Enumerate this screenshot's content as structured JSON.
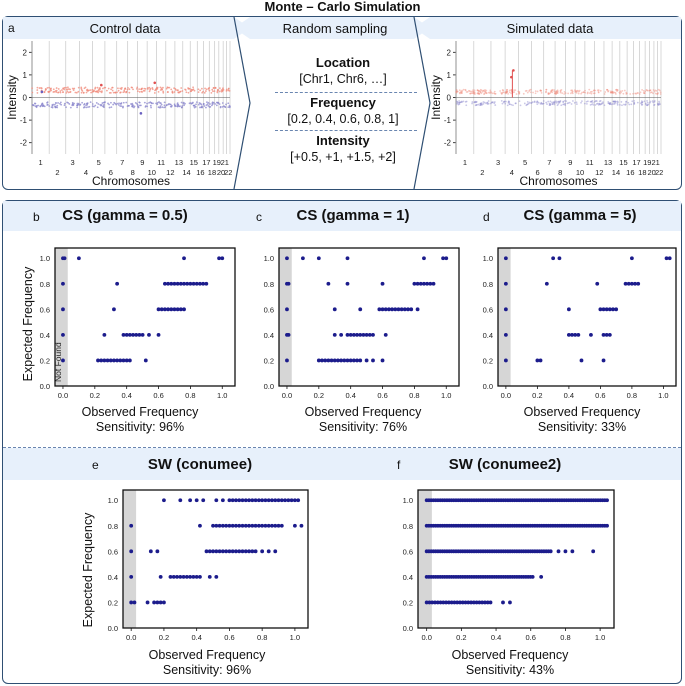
{
  "figure_title": "Monte – Carlo Simulation",
  "top": {
    "panel_a_label": "a",
    "control_title": "Control data",
    "random_title": "Random sampling",
    "simulated_title": "Simulated data",
    "location_head": "Location",
    "location_value": "[Chr1, Chr6, …]",
    "frequency_head": "Frequency",
    "frequency_value": "[0.2, 0.4, 0.6, 0.8, 1]",
    "intensity_head": "Intensity",
    "intensity_value": "[+0.5, +1, +1.5, +2]",
    "ylabel": "Intensity",
    "xlabel": "Chromosomes",
    "y_ticks": [
      "2",
      "1",
      "0",
      "-1",
      "-2"
    ],
    "chrom_ticks_top": [
      "1",
      "3",
      "5",
      "7",
      "9",
      "11",
      "13",
      "15",
      "17",
      "19",
      "21"
    ],
    "chrom_ticks_bottom": [
      "2",
      "4",
      "6",
      "8",
      "10",
      "12",
      "14",
      "16",
      "18",
      "20",
      "22"
    ],
    "control_sim_ticks_top": [
      "1",
      "3",
      "5",
      "7",
      "9",
      "11",
      "13",
      "15",
      "17",
      "19",
      "21"
    ],
    "control_sim_ticks_bottom": [
      "2",
      "4",
      "6",
      "8",
      "10",
      "12",
      "14",
      "16",
      "18",
      "20",
      "22"
    ]
  },
  "chart_data": [
    {
      "panel": "b",
      "type": "scatter",
      "title": "CS (gamma = 0.5)",
      "xlabel": "Observed Frequency",
      "ylabel": "Expected Frequency",
      "sensitivity": "Sensitivity: 96%",
      "not_found_label": "Not Found",
      "xlim": [
        -0.05,
        1.08
      ],
      "ylim": [
        0.0,
        1.08
      ],
      "x_ticks": [
        "0.0",
        "0.2",
        "0.4",
        "0.6",
        "0.8",
        "1.0"
      ],
      "y_ticks": [
        "0.0",
        "0.2",
        "0.4",
        "0.6",
        "0.8",
        "1.0"
      ],
      "points": [
        [
          0.0,
          1.0
        ],
        [
          0.01,
          1.0
        ],
        [
          0.0,
          0.8
        ],
        [
          0.0,
          0.6
        ],
        [
          0.0,
          0.4
        ],
        [
          0.0,
          0.2
        ],
        [
          0.1,
          1.0
        ],
        [
          0.22,
          0.2
        ],
        [
          0.24,
          0.2
        ],
        [
          0.26,
          0.2
        ],
        [
          0.28,
          0.2
        ],
        [
          0.3,
          0.2
        ],
        [
          0.32,
          0.2
        ],
        [
          0.34,
          0.2
        ],
        [
          0.36,
          0.2
        ],
        [
          0.38,
          0.2
        ],
        [
          0.4,
          0.2
        ],
        [
          0.42,
          0.2
        ],
        [
          0.52,
          0.2
        ],
        [
          0.26,
          0.4
        ],
        [
          0.38,
          0.4
        ],
        [
          0.4,
          0.4
        ],
        [
          0.42,
          0.4
        ],
        [
          0.44,
          0.4
        ],
        [
          0.46,
          0.4
        ],
        [
          0.48,
          0.4
        ],
        [
          0.5,
          0.4
        ],
        [
          0.54,
          0.4
        ],
        [
          0.6,
          0.4
        ],
        [
          0.32,
          0.6
        ],
        [
          0.6,
          0.6
        ],
        [
          0.62,
          0.6
        ],
        [
          0.64,
          0.6
        ],
        [
          0.66,
          0.6
        ],
        [
          0.68,
          0.6
        ],
        [
          0.7,
          0.6
        ],
        [
          0.72,
          0.6
        ],
        [
          0.74,
          0.6
        ],
        [
          0.76,
          0.6
        ],
        [
          0.34,
          0.8
        ],
        [
          0.64,
          0.8
        ],
        [
          0.66,
          0.8
        ],
        [
          0.68,
          0.8
        ],
        [
          0.7,
          0.8
        ],
        [
          0.72,
          0.8
        ],
        [
          0.74,
          0.8
        ],
        [
          0.76,
          0.8
        ],
        [
          0.78,
          0.8
        ],
        [
          0.8,
          0.8
        ],
        [
          0.82,
          0.8
        ],
        [
          0.84,
          0.8
        ],
        [
          0.86,
          0.8
        ],
        [
          0.88,
          0.8
        ],
        [
          0.9,
          0.8
        ],
        [
          0.76,
          1.0
        ],
        [
          0.98,
          1.0
        ],
        [
          1.0,
          1.0
        ]
      ]
    },
    {
      "panel": "c",
      "type": "scatter",
      "title": "CS (gamma = 1)",
      "xlabel": "Observed Frequency",
      "ylabel": "",
      "sensitivity": "Sensitivity: 76%",
      "xlim": [
        -0.05,
        1.08
      ],
      "ylim": [
        0.0,
        1.08
      ],
      "x_ticks": [
        "0.0",
        "0.2",
        "0.4",
        "0.6",
        "0.8",
        "1.0"
      ],
      "y_ticks": [
        "0.0",
        "0.2",
        "0.4",
        "0.6",
        "0.8",
        "1.0"
      ],
      "points": [
        [
          0.0,
          1.0
        ],
        [
          0.0,
          0.8
        ],
        [
          0.01,
          0.8
        ],
        [
          0.0,
          0.6
        ],
        [
          0.0,
          0.4
        ],
        [
          0.01,
          0.4
        ],
        [
          0.0,
          0.2
        ],
        [
          0.1,
          1.0
        ],
        [
          0.2,
          1.0
        ],
        [
          0.38,
          1.0
        ],
        [
          0.2,
          0.2
        ],
        [
          0.22,
          0.2
        ],
        [
          0.24,
          0.2
        ],
        [
          0.26,
          0.2
        ],
        [
          0.28,
          0.2
        ],
        [
          0.3,
          0.2
        ],
        [
          0.32,
          0.2
        ],
        [
          0.34,
          0.2
        ],
        [
          0.36,
          0.2
        ],
        [
          0.38,
          0.2
        ],
        [
          0.4,
          0.2
        ],
        [
          0.42,
          0.2
        ],
        [
          0.44,
          0.2
        ],
        [
          0.46,
          0.2
        ],
        [
          0.5,
          0.2
        ],
        [
          0.54,
          0.2
        ],
        [
          0.6,
          0.2
        ],
        [
          0.3,
          0.4
        ],
        [
          0.34,
          0.4
        ],
        [
          0.38,
          0.4
        ],
        [
          0.4,
          0.4
        ],
        [
          0.42,
          0.4
        ],
        [
          0.44,
          0.4
        ],
        [
          0.46,
          0.4
        ],
        [
          0.48,
          0.4
        ],
        [
          0.5,
          0.4
        ],
        [
          0.52,
          0.4
        ],
        [
          0.54,
          0.4
        ],
        [
          0.62,
          0.4
        ],
        [
          0.3,
          0.6
        ],
        [
          0.46,
          0.6
        ],
        [
          0.58,
          0.6
        ],
        [
          0.6,
          0.6
        ],
        [
          0.62,
          0.6
        ],
        [
          0.64,
          0.6
        ],
        [
          0.66,
          0.6
        ],
        [
          0.68,
          0.6
        ],
        [
          0.7,
          0.6
        ],
        [
          0.72,
          0.6
        ],
        [
          0.74,
          0.6
        ],
        [
          0.76,
          0.6
        ],
        [
          0.78,
          0.6
        ],
        [
          0.82,
          0.6
        ],
        [
          0.26,
          0.8
        ],
        [
          0.38,
          0.8
        ],
        [
          0.6,
          0.8
        ],
        [
          0.8,
          0.8
        ],
        [
          0.82,
          0.8
        ],
        [
          0.84,
          0.8
        ],
        [
          0.86,
          0.8
        ],
        [
          0.88,
          0.8
        ],
        [
          0.9,
          0.8
        ],
        [
          0.92,
          0.8
        ],
        [
          0.86,
          1.0
        ],
        [
          0.98,
          1.0
        ],
        [
          1.0,
          1.0
        ]
      ]
    },
    {
      "panel": "d",
      "type": "scatter",
      "title": "CS (gamma = 5)",
      "xlabel": "Observed Frequency",
      "ylabel": "",
      "sensitivity": "Sensitivity: 33%",
      "xlim": [
        -0.05,
        1.08
      ],
      "ylim": [
        0.0,
        1.08
      ],
      "x_ticks": [
        "0.0",
        "0.2",
        "0.4",
        "0.6",
        "0.8",
        "1.0"
      ],
      "y_ticks": [
        "0.0",
        "0.2",
        "0.4",
        "0.6",
        "0.8",
        "1.0"
      ],
      "points": [
        [
          0.0,
          1.0
        ],
        [
          0.0,
          0.8
        ],
        [
          0.0,
          0.6
        ],
        [
          0.0,
          0.4
        ],
        [
          0.0,
          0.2
        ],
        [
          0.2,
          0.2
        ],
        [
          0.22,
          0.2
        ],
        [
          0.48,
          0.2
        ],
        [
          0.62,
          0.2
        ],
        [
          0.4,
          0.4
        ],
        [
          0.42,
          0.4
        ],
        [
          0.44,
          0.4
        ],
        [
          0.46,
          0.4
        ],
        [
          0.54,
          0.4
        ],
        [
          0.62,
          0.4
        ],
        [
          0.64,
          0.4
        ],
        [
          0.66,
          0.4
        ],
        [
          0.3,
          1.0
        ],
        [
          0.34,
          1.0
        ],
        [
          0.4,
          0.6
        ],
        [
          0.6,
          0.6
        ],
        [
          0.62,
          0.6
        ],
        [
          0.64,
          0.6
        ],
        [
          0.66,
          0.6
        ],
        [
          0.68,
          0.6
        ],
        [
          0.7,
          0.6
        ],
        [
          0.26,
          0.8
        ],
        [
          0.58,
          0.8
        ],
        [
          0.76,
          0.8
        ],
        [
          0.78,
          0.8
        ],
        [
          0.8,
          0.8
        ],
        [
          0.82,
          0.8
        ],
        [
          0.84,
          0.8
        ],
        [
          0.8,
          1.0
        ],
        [
          1.02,
          1.0
        ],
        [
          1.04,
          1.0
        ]
      ]
    },
    {
      "panel": "e",
      "type": "scatter",
      "title": "SW (conumee)",
      "xlabel": "Observed Frequency",
      "ylabel": "Expected Frequency",
      "sensitivity": "Sensitivity: 96%",
      "xlim": [
        -0.05,
        1.08
      ],
      "ylim": [
        0.0,
        1.08
      ],
      "x_ticks": [
        "0.0",
        "0.2",
        "0.4",
        "0.6",
        "0.8",
        "1.0"
      ],
      "y_ticks": [
        "0.0",
        "0.2",
        "0.4",
        "0.6",
        "0.8",
        "1.0"
      ],
      "points": [
        [
          0.0,
          0.8
        ],
        [
          0.0,
          0.6
        ],
        [
          0.0,
          0.4
        ],
        [
          0.0,
          0.2
        ],
        [
          0.02,
          0.2
        ],
        [
          0.1,
          0.2
        ],
        [
          0.14,
          0.2
        ],
        [
          0.16,
          0.2
        ],
        [
          0.18,
          0.2
        ],
        [
          0.2,
          0.2
        ],
        [
          0.12,
          0.6
        ],
        [
          0.18,
          0.4
        ],
        [
          0.16,
          0.6
        ],
        [
          0.2,
          1.0
        ],
        [
          0.24,
          0.4
        ],
        [
          0.26,
          0.4
        ],
        [
          0.28,
          0.4
        ],
        [
          0.3,
          0.4
        ],
        [
          0.32,
          0.4
        ],
        [
          0.34,
          0.4
        ],
        [
          0.36,
          0.4
        ],
        [
          0.38,
          0.4
        ],
        [
          0.4,
          0.4
        ],
        [
          0.42,
          0.4
        ],
        [
          0.48,
          0.4
        ],
        [
          0.52,
          0.4
        ],
        [
          0.3,
          1.0
        ],
        [
          0.36,
          1.0
        ],
        [
          0.42,
          0.8
        ],
        [
          0.4,
          1.0
        ],
        [
          0.44,
          1.0
        ],
        [
          0.46,
          0.6
        ],
        [
          0.48,
          0.6
        ],
        [
          0.5,
          0.6
        ],
        [
          0.52,
          0.6
        ],
        [
          0.54,
          0.6
        ],
        [
          0.56,
          0.6
        ],
        [
          0.58,
          0.6
        ],
        [
          0.6,
          0.6
        ],
        [
          0.62,
          0.6
        ],
        [
          0.64,
          0.6
        ],
        [
          0.66,
          0.6
        ],
        [
          0.68,
          0.6
        ],
        [
          0.7,
          0.6
        ],
        [
          0.72,
          0.6
        ],
        [
          0.74,
          0.6
        ],
        [
          0.76,
          0.6
        ],
        [
          0.8,
          0.6
        ],
        [
          0.84,
          0.6
        ],
        [
          0.88,
          0.6
        ],
        [
          0.5,
          0.8
        ],
        [
          0.52,
          0.8
        ],
        [
          0.54,
          0.8
        ],
        [
          0.56,
          0.8
        ],
        [
          0.58,
          0.8
        ],
        [
          0.6,
          0.8
        ],
        [
          0.62,
          0.8
        ],
        [
          0.64,
          0.8
        ],
        [
          0.66,
          0.8
        ],
        [
          0.68,
          0.8
        ],
        [
          0.7,
          0.8
        ],
        [
          0.72,
          0.8
        ],
        [
          0.74,
          0.8
        ],
        [
          0.76,
          0.8
        ],
        [
          0.78,
          0.8
        ],
        [
          0.8,
          0.8
        ],
        [
          0.82,
          0.8
        ],
        [
          0.84,
          0.8
        ],
        [
          0.86,
          0.8
        ],
        [
          0.88,
          0.8
        ],
        [
          0.9,
          0.8
        ],
        [
          0.92,
          0.8
        ],
        [
          1.0,
          0.8
        ],
        [
          1.04,
          0.8
        ],
        [
          0.52,
          1.0
        ],
        [
          0.56,
          1.0
        ],
        [
          0.6,
          1.0
        ],
        [
          0.62,
          1.0
        ],
        [
          0.64,
          1.0
        ],
        [
          0.66,
          1.0
        ],
        [
          0.68,
          1.0
        ],
        [
          0.7,
          1.0
        ],
        [
          0.72,
          1.0
        ],
        [
          0.74,
          1.0
        ],
        [
          0.76,
          1.0
        ],
        [
          0.78,
          1.0
        ],
        [
          0.8,
          1.0
        ],
        [
          0.82,
          1.0
        ],
        [
          0.84,
          1.0
        ],
        [
          0.86,
          1.0
        ],
        [
          0.88,
          1.0
        ],
        [
          0.9,
          1.0
        ],
        [
          0.92,
          1.0
        ],
        [
          0.94,
          1.0
        ],
        [
          0.96,
          1.0
        ],
        [
          0.98,
          1.0
        ],
        [
          1.0,
          1.0
        ],
        [
          1.02,
          1.0
        ]
      ]
    },
    {
      "panel": "f",
      "type": "scatter",
      "title": "SW (conumee2)",
      "xlabel": "Observed Frequency",
      "ylabel": "",
      "sensitivity": "Sensitivity: 43%",
      "xlim": [
        -0.05,
        1.08
      ],
      "ylim": [
        0.0,
        1.08
      ],
      "x_ticks": [
        "0.0",
        "0.2",
        "0.4",
        "0.6",
        "0.8",
        "1.0"
      ],
      "y_ticks": [
        "0.0",
        "0.2",
        "0.4",
        "0.6",
        "0.8",
        "1.0"
      ],
      "dense_rows": [
        {
          "y": 1.0,
          "x_from": 0.0,
          "x_to": 1.04,
          "step": 0.013
        },
        {
          "y": 0.8,
          "x_from": 0.0,
          "x_to": 1.04,
          "step": 0.013
        },
        {
          "y": 0.6,
          "x_from": 0.0,
          "x_to": 0.72,
          "step": 0.013
        },
        {
          "y": 0.4,
          "x_from": 0.0,
          "x_to": 0.62,
          "step": 0.013
        },
        {
          "y": 0.2,
          "x_from": 0.0,
          "x_to": 0.38,
          "step": 0.016
        }
      ],
      "points": [
        [
          0.76,
          0.6
        ],
        [
          0.8,
          0.6
        ],
        [
          0.84,
          0.6
        ],
        [
          0.96,
          0.6
        ],
        [
          0.66,
          0.4
        ],
        [
          0.44,
          0.2
        ],
        [
          0.48,
          0.2
        ]
      ]
    }
  ],
  "colors": {
    "frame": "#2f4f73",
    "band": "#e7f0fb",
    "point": "#1c1c8c",
    "not_found": "#d6d6d6",
    "gain": "#f08a7a",
    "loss": "#8a86cc"
  }
}
